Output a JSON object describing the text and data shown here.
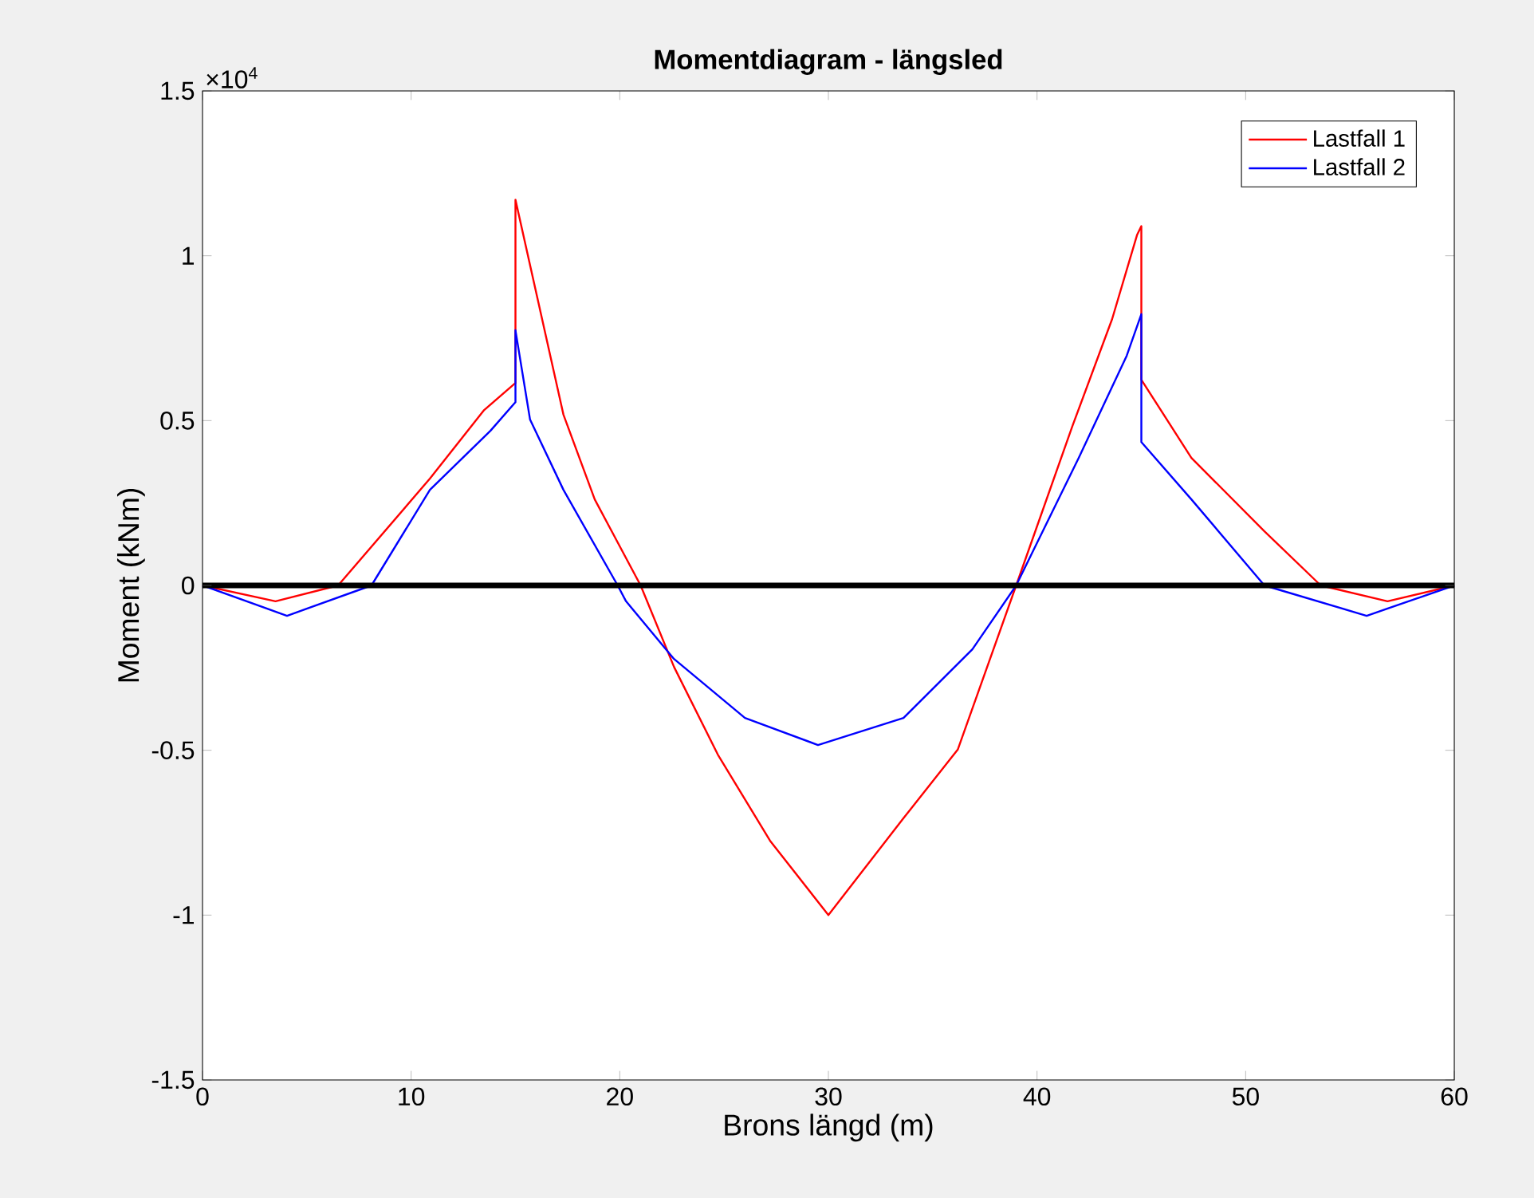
{
  "chart_data": {
    "type": "line",
    "title": "Momentdiagram - längsled",
    "xlabel": "Brons längd (m)",
    "ylabel": "Moment (kNm)",
    "annotations": [
      "×10$^{4}$"
    ],
    "series": [
      {
        "name": "Lastfall 1",
        "color": "#ff0000",
        "x": [
          0,
          3.5,
          6.5,
          10.9,
          13.5,
          15,
          15,
          17.3,
          18.8,
          21,
          22.6,
          24.7,
          27.2,
          30,
          33.6,
          36.2,
          39,
          41.7,
          43.6,
          44.8,
          45,
          45,
          47.4,
          50.9,
          53.6,
          56.8,
          60
        ],
        "values": [
          0,
          -0.048,
          0,
          0.324,
          0.532,
          0.614,
          1.17,
          0.518,
          0.261,
          0,
          -0.247,
          -0.513,
          -0.774,
          -1.0,
          -0.706,
          -0.498,
          0,
          0.484,
          0.808,
          1.064,
          1.09,
          0.624,
          0.387,
          0.164,
          0,
          -0.048,
          0
        ]
      },
      {
        "name": "Lastfall 2",
        "color": "#0000ff",
        "x": [
          0,
          4.05,
          8.1,
          10.9,
          13.8,
          15,
          15,
          15.7,
          17.3,
          19.9,
          20.3,
          22.6,
          26,
          29.5,
          33.6,
          36.9,
          39,
          42,
          44.3,
          45,
          45,
          47.4,
          50.9,
          55.8,
          60
        ],
        "values": [
          0,
          -0.092,
          0,
          0.29,
          0.469,
          0.556,
          0.774,
          0.503,
          0.29,
          0,
          -0.048,
          -0.223,
          -0.402,
          -0.484,
          -0.402,
          -0.194,
          0,
          0.387,
          0.697,
          0.823,
          0.435,
          0.261,
          0,
          -0.092,
          0
        ]
      }
    ],
    "xlim": [
      0,
      60
    ],
    "xticks": [
      0,
      10,
      20,
      30,
      40,
      50,
      60
    ],
    "ylim": [
      -1.5,
      1.5
    ],
    "yticks": [
      -1.5,
      -1,
      -0.5,
      0,
      0.5,
      1,
      1.5
    ],
    "ref_lines": [
      {
        "axis": "y",
        "value": 0,
        "color": "#000000"
      }
    ],
    "legend": "top right",
    "grid": false,
    "marker": "none",
    "line_style": "solid"
  }
}
